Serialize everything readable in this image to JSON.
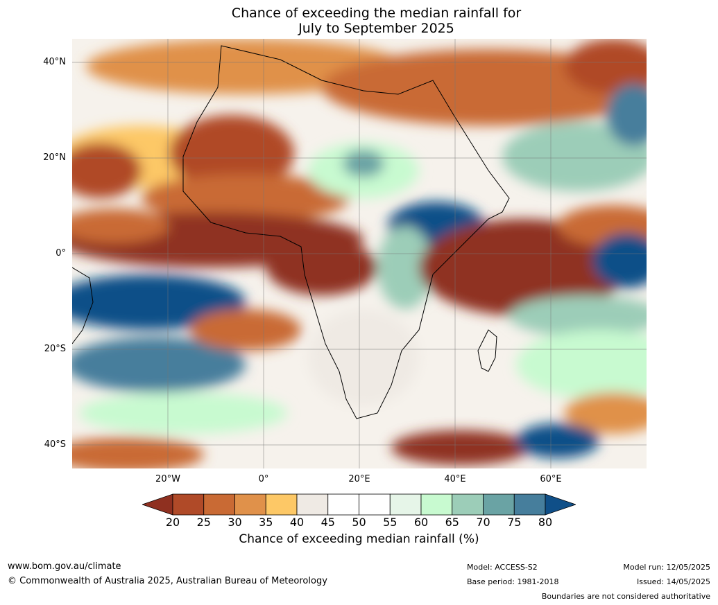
{
  "title": {
    "line1": "Chance of exceeding the median rainfall for",
    "line2": "July to September 2025"
  },
  "map": {
    "region": "Africa",
    "latitude_labels": [
      "40°N",
      "20°N",
      "0°",
      "20°S",
      "40°S"
    ],
    "longitude_labels": [
      "20°W",
      "0°",
      "20°E",
      "40°E",
      "60°E"
    ]
  },
  "colorbar": {
    "ticks": [
      "20",
      "25",
      "30",
      "35",
      "40",
      "45",
      "50",
      "55",
      "60",
      "65",
      "70",
      "75",
      "80"
    ],
    "colors": [
      "#8f3020",
      "#b04a28",
      "#c96a34",
      "#e0914a",
      "#fdc866",
      "#efeae4",
      "#ffffff",
      "#ffffff",
      "#e6f5e8",
      "#c8fad0",
      "#9ccdb8",
      "#6aa3a4",
      "#467e9c",
      "#0f4f88"
    ],
    "label": "Chance of exceeding median rainfall (%)"
  },
  "footer": {
    "website": "www.bom.gov.au/climate",
    "copyright": "© Commonwealth of Australia 2025, Australian Bureau of Meteorology",
    "model": "Model: ACCESS-S2",
    "base_period": "Base period: 1981-2018",
    "model_run": "Model run: 12/05/2025",
    "issued": "Issued: 14/05/2025",
    "disclaimer": "Boundaries are not considered authoritative"
  }
}
